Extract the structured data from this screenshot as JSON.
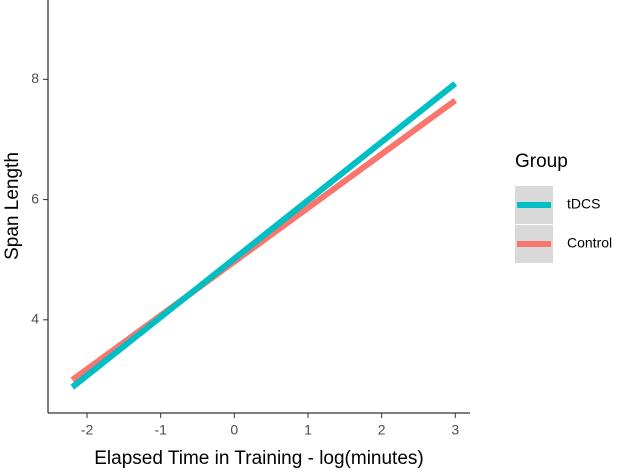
{
  "chart_data": {
    "type": "line",
    "x_label": "Elapsed Time in Training - log(minutes)",
    "y_label": "Span Length",
    "legend_title": "Group",
    "x": [
      -2.2,
      3
    ],
    "series": [
      {
        "name": "tDCS",
        "color": "#00bfc4",
        "values": [
          2.88,
          7.93
        ]
      },
      {
        "name": "Control",
        "color": "#f8766d",
        "values": [
          3.0,
          7.65
        ]
      }
    ],
    "xlim": [
      -2.53,
      3.2
    ],
    "xticks": [
      -2,
      -1,
      0,
      1,
      2,
      3
    ],
    "ylim": [
      2.45,
      9.32
    ],
    "yticks": [
      4,
      6,
      8
    ],
    "grid": false,
    "legend": "right"
  }
}
